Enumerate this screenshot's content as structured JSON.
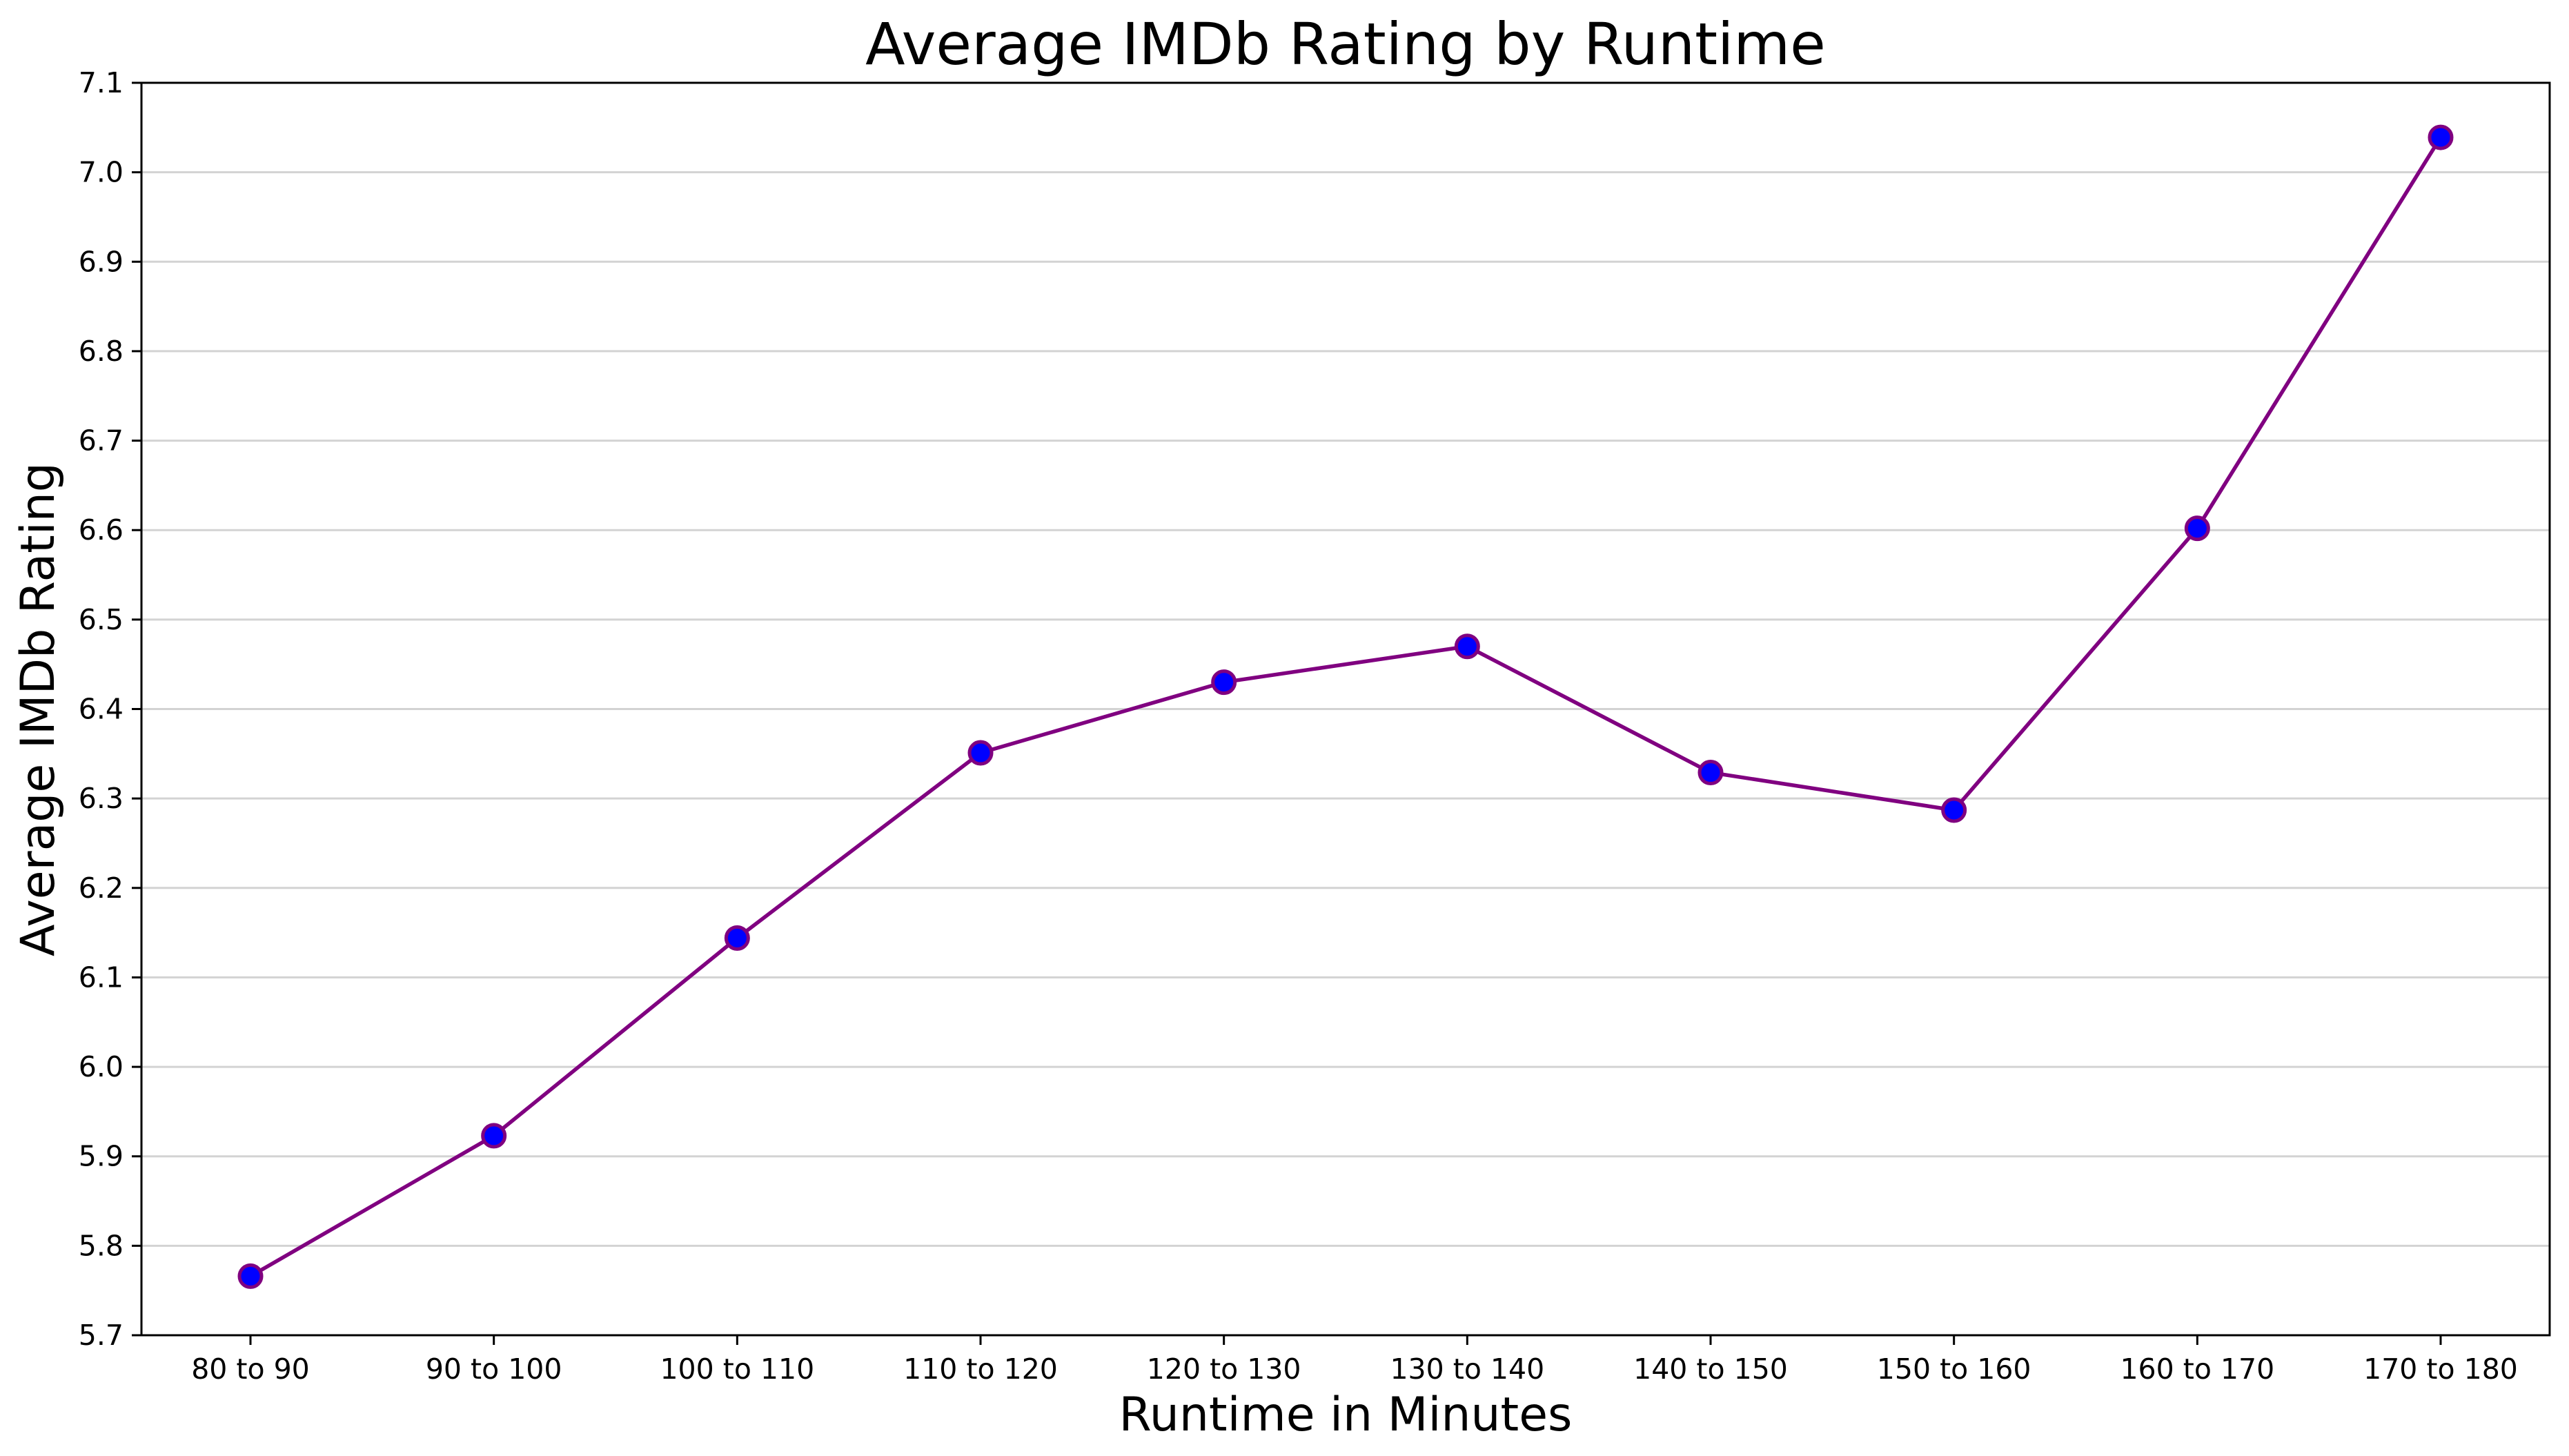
{
  "chart_data": {
    "type": "line",
    "title": "Average IMDb Rating by Runtime",
    "xlabel": "Runtime in Minutes",
    "ylabel": "Average IMDb Rating",
    "categories": [
      "80 to 90",
      "90 to 100",
      "100 to 110",
      "110 to 120",
      "120 to 130",
      "130 to 140",
      "140 to 150",
      "150 to 160",
      "160 to 170",
      "170 to 180"
    ],
    "series": [
      {
        "values": [
          5.766,
          5.923,
          6.144,
          6.351,
          6.43,
          6.47,
          6.329,
          6.287,
          6.602,
          7.039
        ]
      }
    ],
    "ylim": [
      5.7,
      7.1
    ],
    "yticks": [
      "5.7",
      "5.8",
      "5.9",
      "6.0",
      "6.1",
      "6.2",
      "6.3",
      "6.4",
      "6.5",
      "6.6",
      "6.7",
      "6.8",
      "6.9",
      "7.0",
      "7.1"
    ],
    "grid": "horizontal",
    "colors": {
      "line": "#800080",
      "marker_fill": "#0000ff",
      "marker_edge": "#800080",
      "grid": "#d3d3d3",
      "axis": "#000000"
    }
  }
}
